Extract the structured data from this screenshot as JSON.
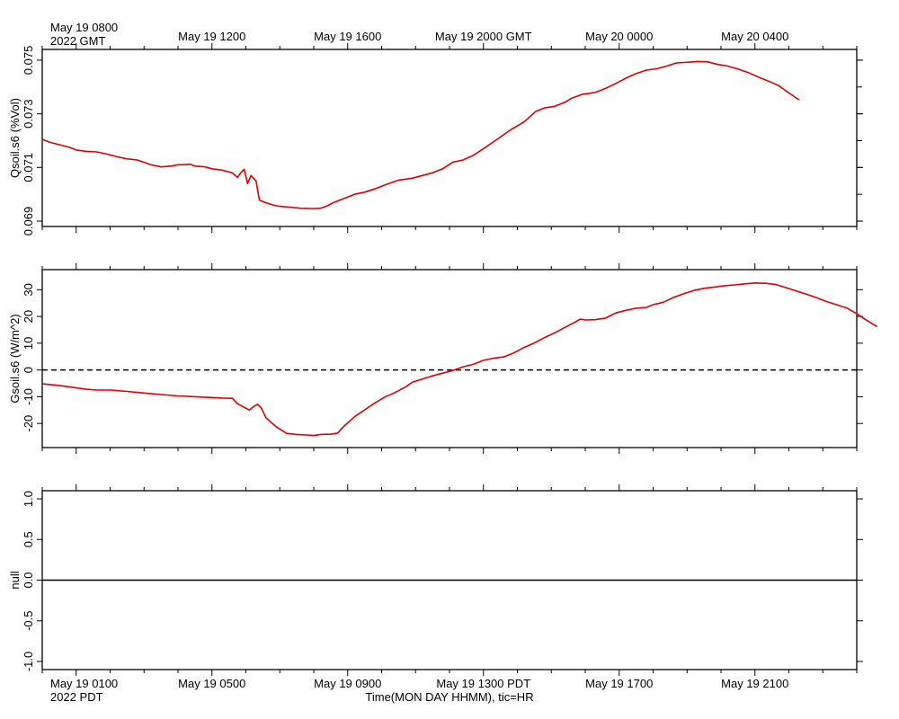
{
  "top_axis": {
    "corner_line1": "May 19 0800",
    "corner_line2": "2022 GMT",
    "ticks": [
      {
        "h": 4,
        "label": "May 19 1200"
      },
      {
        "h": 8,
        "label": "May 19 1600"
      },
      {
        "h": 12,
        "label": "May 19 2000 GMT"
      },
      {
        "h": 16,
        "label": "May 20 0000"
      },
      {
        "h": 20,
        "label": "May 20 0400"
      }
    ]
  },
  "bottom_axis": {
    "corner_line1": "May 19 0100",
    "corner_line2": "2022 PDT",
    "title": "Time(MON DAY HHMM), tic=HR",
    "ticks": [
      {
        "h": 4,
        "label": "May 19 0500"
      },
      {
        "h": 8,
        "label": "May 19 0900"
      },
      {
        "h": 12,
        "label": "May 19 1300 PDT"
      },
      {
        "h": 16,
        "label": "May 19 1700"
      },
      {
        "h": 20,
        "label": "May 19 2100"
      }
    ]
  },
  "chart_data": [
    {
      "type": "line",
      "ylabel": "Qsoil.s6 (%Vol)",
      "ylim": [
        0.0688,
        0.0754
      ],
      "ytick_labels": [
        "0.069",
        "0.071",
        "0.073",
        "0.075"
      ],
      "ytick_values": [
        0.069,
        0.071,
        0.073,
        0.075
      ],
      "minor_ytick_values": [
        0.069,
        0.07,
        0.071,
        0.072,
        0.073,
        0.074,
        0.075
      ],
      "xlim": [
        -1,
        23
      ],
      "line_color": "#e00000",
      "series": [
        {
          "values": [
            [
              -1.0,
              0.07205
            ],
            [
              -0.8,
              0.07195
            ],
            [
              -0.5,
              0.07185
            ],
            [
              -0.2,
              0.07175
            ],
            [
              0.0,
              0.07165
            ],
            [
              0.3,
              0.0716
            ],
            [
              0.6,
              0.07158
            ],
            [
              0.9,
              0.0715
            ],
            [
              1.2,
              0.0714
            ],
            [
              1.5,
              0.07132
            ],
            [
              1.8,
              0.07128
            ],
            [
              2.2,
              0.0711
            ],
            [
              2.5,
              0.07102
            ],
            [
              2.8,
              0.07105
            ],
            [
              3.0,
              0.0711
            ],
            [
              3.2,
              0.0711
            ],
            [
              3.35,
              0.07112
            ],
            [
              3.5,
              0.07105
            ],
            [
              3.8,
              0.07102
            ],
            [
              4.0,
              0.07095
            ],
            [
              4.3,
              0.0709
            ],
            [
              4.6,
              0.0708
            ],
            [
              4.75,
              0.07063
            ],
            [
              4.85,
              0.0708
            ],
            [
              4.95,
              0.07093
            ],
            [
              5.05,
              0.0704
            ],
            [
              5.15,
              0.0707
            ],
            [
              5.3,
              0.0705
            ],
            [
              5.4,
              0.06978
            ],
            [
              5.6,
              0.06968
            ],
            [
              5.8,
              0.0696
            ],
            [
              6.0,
              0.06955
            ],
            [
              6.3,
              0.06952
            ],
            [
              6.6,
              0.06948
            ],
            [
              7.0,
              0.06947
            ],
            [
              7.2,
              0.06948
            ],
            [
              7.4,
              0.06957
            ],
            [
              7.6,
              0.0697
            ],
            [
              7.9,
              0.06985
            ],
            [
              8.2,
              0.07
            ],
            [
              8.5,
              0.07008
            ],
            [
              8.8,
              0.0702
            ],
            [
              9.1,
              0.07035
            ],
            [
              9.5,
              0.07053
            ],
            [
              9.9,
              0.0706
            ],
            [
              10.2,
              0.0707
            ],
            [
              10.5,
              0.0708
            ],
            [
              10.8,
              0.07095
            ],
            [
              11.1,
              0.0712
            ],
            [
              11.4,
              0.07128
            ],
            [
              11.7,
              0.07145
            ],
            [
              12.0,
              0.0717
            ],
            [
              12.4,
              0.07205
            ],
            [
              12.8,
              0.0724
            ],
            [
              13.2,
              0.0727
            ],
            [
              13.55,
              0.0731
            ],
            [
              13.8,
              0.07322
            ],
            [
              14.1,
              0.07328
            ],
            [
              14.4,
              0.07343
            ],
            [
              14.6,
              0.07358
            ],
            [
              14.9,
              0.07372
            ],
            [
              15.3,
              0.0738
            ],
            [
              15.6,
              0.07395
            ],
            [
              15.9,
              0.07413
            ],
            [
              16.2,
              0.07433
            ],
            [
              16.5,
              0.0745
            ],
            [
              16.8,
              0.07463
            ],
            [
              17.1,
              0.07468
            ],
            [
              17.4,
              0.07478
            ],
            [
              17.7,
              0.0749
            ],
            [
              18.0,
              0.07492
            ],
            [
              18.3,
              0.07495
            ],
            [
              18.6,
              0.07494
            ],
            [
              18.9,
              0.07484
            ],
            [
              19.2,
              0.07478
            ],
            [
              19.5,
              0.07467
            ],
            [
              19.8,
              0.07454
            ],
            [
              20.1,
              0.07437
            ],
            [
              20.4,
              0.07422
            ],
            [
              20.7,
              0.07405
            ],
            [
              21.0,
              0.07378
            ],
            [
              21.3,
              0.07352
            ]
          ]
        }
      ]
    },
    {
      "type": "line",
      "ylabel": "Gsoil.s6 (W/m^2)",
      "ylim": [
        -29,
        37.5
      ],
      "ytick_labels": [
        "-20",
        "-10",
        "0",
        "10",
        "20",
        "30"
      ],
      "ytick_values": [
        -20,
        -10,
        0,
        10,
        20,
        30
      ],
      "zero_line": "dashed",
      "xlim": [
        -1,
        23
      ],
      "line_color": "#e00000",
      "series": [
        {
          "values": [
            [
              -1.0,
              -5.2
            ],
            [
              -0.5,
              -5.8
            ],
            [
              0.0,
              -6.7
            ],
            [
              0.3,
              -7.2
            ],
            [
              0.6,
              -7.5
            ],
            [
              1.0,
              -7.5
            ],
            [
              1.5,
              -8.0
            ],
            [
              2.0,
              -8.6
            ],
            [
              2.5,
              -9.2
            ],
            [
              3.0,
              -9.7
            ],
            [
              3.5,
              -10.0
            ],
            [
              4.0,
              -10.3
            ],
            [
              4.3,
              -10.5
            ],
            [
              4.6,
              -10.6
            ],
            [
              4.75,
              -12.6
            ],
            [
              5.0,
              -14.3
            ],
            [
              5.1,
              -15.0
            ],
            [
              5.25,
              -13.5
            ],
            [
              5.35,
              -12.8
            ],
            [
              5.45,
              -14.2
            ],
            [
              5.6,
              -18.0
            ],
            [
              5.9,
              -21.3
            ],
            [
              6.2,
              -23.7
            ],
            [
              6.5,
              -24.1
            ],
            [
              6.8,
              -24.3
            ],
            [
              7.0,
              -24.5
            ],
            [
              7.2,
              -24.1
            ],
            [
              7.5,
              -24.0
            ],
            [
              7.7,
              -23.6
            ],
            [
              7.9,
              -20.9
            ],
            [
              8.2,
              -17.5
            ],
            [
              8.5,
              -14.9
            ],
            [
              8.8,
              -12.3
            ],
            [
              9.1,
              -10.1
            ],
            [
              9.4,
              -8.4
            ],
            [
              9.7,
              -6.4
            ],
            [
              9.9,
              -4.6
            ],
            [
              10.2,
              -3.4
            ],
            [
              10.5,
              -2.2
            ],
            [
              10.8,
              -1.2
            ],
            [
              11.1,
              -0.2
            ],
            [
              11.4,
              1.2
            ],
            [
              11.7,
              2.1
            ],
            [
              12.0,
              3.6
            ],
            [
              12.3,
              4.4
            ],
            [
              12.6,
              4.9
            ],
            [
              12.9,
              6.4
            ],
            [
              13.2,
              8.4
            ],
            [
              13.5,
              10.1
            ],
            [
              13.8,
              12.1
            ],
            [
              14.1,
              13.9
            ],
            [
              14.4,
              15.9
            ],
            [
              14.7,
              17.9
            ],
            [
              14.85,
              19.0
            ],
            [
              15.0,
              18.7
            ],
            [
              15.3,
              18.8
            ],
            [
              15.6,
              19.4
            ],
            [
              15.9,
              21.3
            ],
            [
              16.2,
              22.3
            ],
            [
              16.5,
              23.1
            ],
            [
              16.8,
              23.4
            ],
            [
              17.0,
              24.4
            ],
            [
              17.3,
              25.3
            ],
            [
              17.6,
              27.1
            ],
            [
              17.9,
              28.5
            ],
            [
              18.2,
              29.7
            ],
            [
              18.5,
              30.5
            ],
            [
              18.8,
              31.0
            ],
            [
              19.1,
              31.5
            ],
            [
              19.4,
              31.8
            ],
            [
              19.7,
              32.2
            ],
            [
              20.0,
              32.5
            ],
            [
              20.3,
              32.4
            ],
            [
              20.6,
              32.0
            ],
            [
              20.9,
              30.8
            ],
            [
              21.2,
              29.6
            ],
            [
              21.5,
              28.4
            ],
            [
              21.8,
              27.1
            ],
            [
              22.1,
              25.6
            ],
            [
              22.4,
              24.4
            ],
            [
              22.7,
              23.2
            ],
            [
              23.0,
              21.0
            ],
            [
              23.3,
              18.5
            ],
            [
              23.6,
              16.2
            ]
          ]
        }
      ]
    },
    {
      "type": "line",
      "ylabel": "null",
      "ylim": [
        -1.1,
        1.1
      ],
      "ytick_labels": [
        "-1.0",
        "-0.5",
        "0.0",
        "0.5",
        "1.0"
      ],
      "ytick_values": [
        -1.0,
        -0.5,
        0.0,
        0.5,
        1.0
      ],
      "zero_line": "solid",
      "xlim": [
        -1,
        23
      ],
      "series": []
    }
  ]
}
